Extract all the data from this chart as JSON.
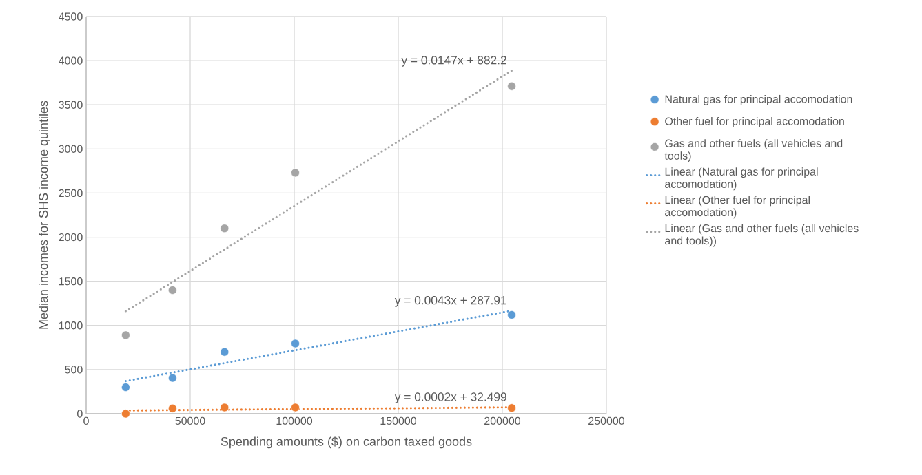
{
  "chart_data": {
    "type": "scatter",
    "xlabel": "Spending amounts ($) on carbon taxed goods",
    "ylabel": "Median incomes for SHS income quintiles",
    "x": [
      19000,
      41500,
      66500,
      100500,
      204500
    ],
    "series": [
      {
        "name": "Natural gas for principal accomodation",
        "color": "#5b9bd5",
        "marker": "circle",
        "values": [
          300,
          405,
          700,
          795,
          1120
        ]
      },
      {
        "name": "Other fuel for principal accomodation",
        "color": "#ed7d31",
        "marker": "circle",
        "values": [
          0,
          60,
          70,
          70,
          65
        ]
      },
      {
        "name": "Gas and other fuels (all vehicles and tools)",
        "color": "#a5a5a5",
        "marker": "circle",
        "values": [
          890,
          1400,
          2100,
          2730,
          3710
        ]
      },
      {
        "name": "Linear (Natural gas for principal accomodation)",
        "type": "line",
        "color": "#5b9bd5",
        "marker": "none",
        "line_style": "dotted",
        "values": [
          370,
          466,
          574,
          720,
          1167
        ]
      },
      {
        "name": "Linear (Other fuel for principal accomodation)",
        "type": "line",
        "color": "#ed7d31",
        "marker": "none",
        "line_style": "dotted",
        "values": [
          36,
          41,
          46,
          53,
          73
        ]
      },
      {
        "name": "Linear (Gas and other fuels (all vehicles and tools))",
        "type": "line",
        "color": "#a5a5a5",
        "marker": "none",
        "line_style": "dotted",
        "values": [
          1162,
          1492,
          1860,
          2360,
          3888
        ]
      }
    ],
    "annotations": [
      "y = 0.0043x + 287.91",
      "y = 0.0002x + 32.499",
      "y = 0.0147x + 882.2"
    ],
    "xlim": [
      0,
      250000
    ],
    "xticks": [
      0,
      50000,
      100000,
      150000,
      200000,
      250000
    ],
    "ylim": [
      0,
      4500
    ],
    "yticks": [
      0,
      500,
      1000,
      1500,
      2000,
      2500,
      3000,
      3500,
      4000,
      4500
    ],
    "grid": true,
    "legend": "right"
  }
}
